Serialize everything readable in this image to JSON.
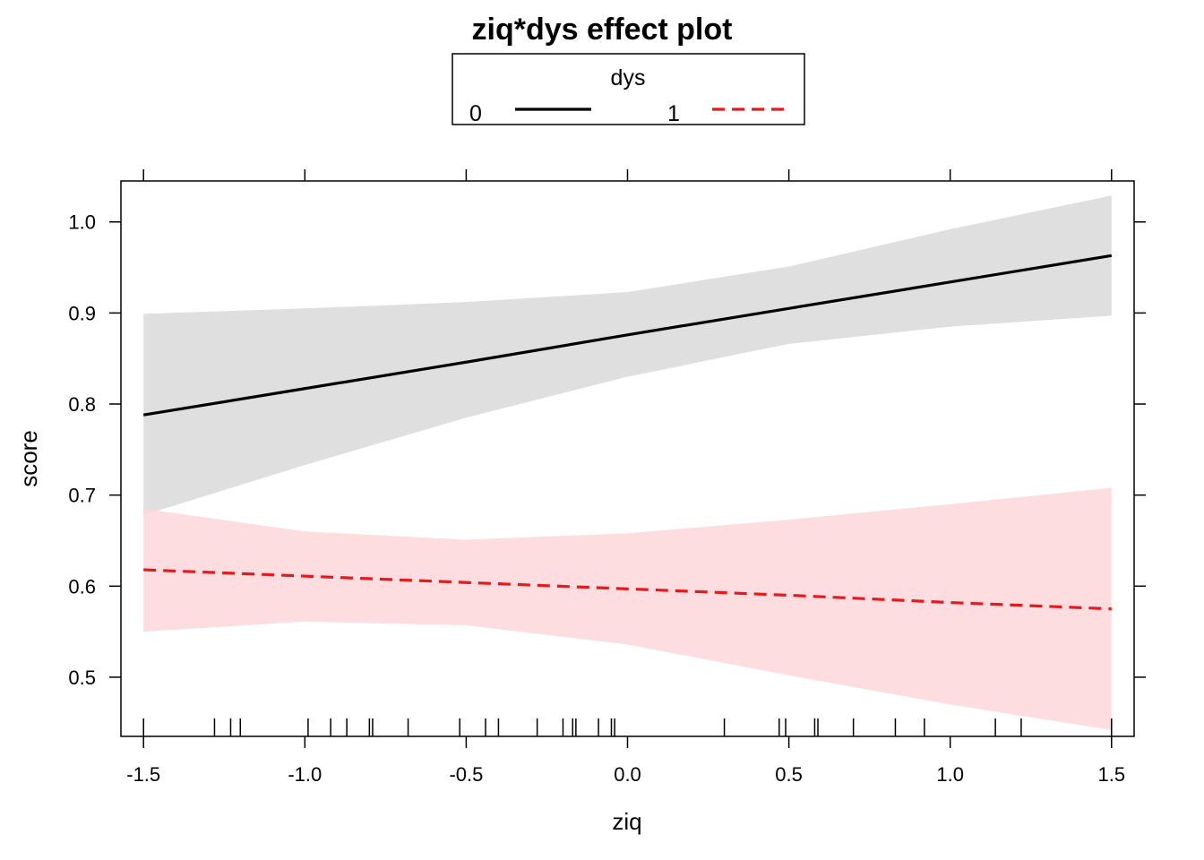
{
  "chart_data": {
    "type": "line",
    "title": "ziq*dys effect plot",
    "xlabel": "ziq",
    "ylabel": "score",
    "xlim": [
      -1.57,
      1.57
    ],
    "ylim": [
      0.435,
      1.045
    ],
    "x_ticks": [
      -1.5,
      -1.0,
      -0.5,
      0.0,
      0.5,
      1.0,
      1.5
    ],
    "x_tick_labels": [
      "-1.5",
      "-1.0",
      "-0.5",
      "0.0",
      "0.5",
      "1.0",
      "1.5"
    ],
    "y_ticks": [
      0.5,
      0.6,
      0.7,
      0.8,
      0.9,
      1.0
    ],
    "y_tick_labels": [
      "0.5",
      "0.6",
      "0.7",
      "0.8",
      "0.9",
      "1.0"
    ],
    "legend": {
      "title": "dys",
      "placement": "top",
      "entries": [
        {
          "label": "0",
          "color": "#000000",
          "dash": "solid"
        },
        {
          "label": "1",
          "color": "#e41a1c",
          "dash": "dashed"
        }
      ]
    },
    "x": [
      -1.5,
      -1.0,
      -0.5,
      0.0,
      0.5,
      1.0,
      1.5
    ],
    "series": [
      {
        "name": "0",
        "color": "#000000",
        "band_color": "#d9d9d9",
        "dash": "solid",
        "values": [
          0.788,
          0.817,
          0.846,
          0.876,
          0.905,
          0.934,
          0.963
        ],
        "lower": [
          0.678,
          0.733,
          0.785,
          0.83,
          0.866,
          0.885,
          0.897
        ],
        "upper": [
          0.899,
          0.905,
          0.912,
          0.923,
          0.951,
          0.992,
          1.029
        ]
      },
      {
        "name": "1",
        "color": "#e41a1c",
        "band_color": "#fdd7d9",
        "dash": "dashed",
        "values": [
          0.618,
          0.611,
          0.604,
          0.597,
          0.59,
          0.582,
          0.575
        ],
        "lower": [
          0.55,
          0.561,
          0.557,
          0.536,
          0.502,
          0.47,
          0.442
        ],
        "upper": [
          0.685,
          0.66,
          0.651,
          0.658,
          0.673,
          0.69,
          0.708
        ]
      }
    ],
    "rug": [
      -1.5,
      -1.28,
      -1.23,
      -1.2,
      -0.99,
      -0.92,
      -0.87,
      -0.8,
      -0.79,
      -0.68,
      -0.52,
      -0.44,
      -0.4,
      -0.28,
      -0.2,
      -0.17,
      -0.16,
      -0.09,
      -0.05,
      -0.04,
      0.3,
      0.47,
      0.49,
      0.58,
      0.59,
      0.7,
      0.83,
      0.92,
      1.14,
      1.22,
      1.5
    ]
  }
}
